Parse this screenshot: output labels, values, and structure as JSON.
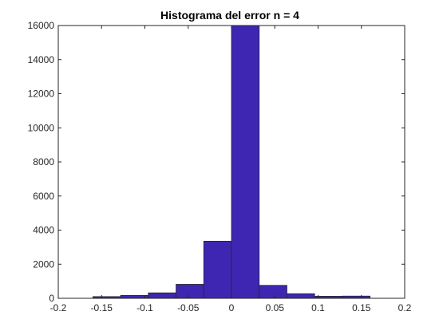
{
  "chart_data": {
    "type": "bar",
    "title": "Histograma del error n = 4",
    "xlabel": "",
    "ylabel": "",
    "xlim": [
      -0.2,
      0.2
    ],
    "ylim": [
      0,
      16000
    ],
    "xticks": [
      -0.2,
      -0.15,
      -0.1,
      -0.05,
      0,
      0.05,
      0.1,
      0.15,
      0.2
    ],
    "xtick_labels": [
      "-0.2",
      "-0.15",
      "-0.1",
      "-0.05",
      "0",
      "0.05",
      "0.1",
      "0.15",
      "0.2"
    ],
    "yticks": [
      0,
      2000,
      4000,
      6000,
      8000,
      10000,
      12000,
      14000,
      16000
    ],
    "ytick_labels": [
      "0",
      "2000",
      "4000",
      "6000",
      "8000",
      "10000",
      "12000",
      "14000",
      "16000"
    ],
    "grid": false,
    "bar_color": "#3f26b2",
    "edge_color": "#262626",
    "bins": [
      {
        "x0": -0.16,
        "x1": -0.128,
        "value": 100
      },
      {
        "x0": -0.128,
        "x1": -0.096,
        "value": 170
      },
      {
        "x0": -0.096,
        "x1": -0.064,
        "value": 320
      },
      {
        "x0": -0.064,
        "x1": -0.032,
        "value": 820
      },
      {
        "x0": -0.032,
        "x1": 0.0,
        "value": 3350
      },
      {
        "x0": 0.0,
        "x1": 0.032,
        "value": 16000
      },
      {
        "x0": 0.032,
        "x1": 0.064,
        "value": 760
      },
      {
        "x0": 0.064,
        "x1": 0.096,
        "value": 270
      },
      {
        "x0": 0.096,
        "x1": 0.128,
        "value": 120
      },
      {
        "x0": 0.128,
        "x1": 0.16,
        "value": 130
      }
    ]
  }
}
